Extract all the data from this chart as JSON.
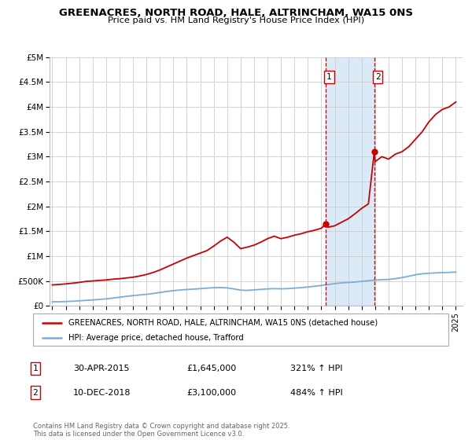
{
  "title": "GREENACRES, NORTH ROAD, HALE, ALTRINCHAM, WA15 0NS",
  "subtitle": "Price paid vs. HM Land Registry's House Price Index (HPI)",
  "background_color": "#ffffff",
  "plot_bg_color": "#ffffff",
  "grid_color": "#cccccc",
  "ylim": [
    0,
    5000000
  ],
  "xlim_start": 1994.8,
  "xlim_end": 2025.5,
  "yticks": [
    0,
    500000,
    1000000,
    1500000,
    2000000,
    2500000,
    3000000,
    3500000,
    4000000,
    4500000,
    5000000
  ],
  "ytick_labels": [
    "£0",
    "£500K",
    "£1M",
    "£1.5M",
    "£2M",
    "£2.5M",
    "£3M",
    "£3.5M",
    "£4M",
    "£4.5M",
    "£5M"
  ],
  "xticks": [
    1995,
    1996,
    1997,
    1998,
    1999,
    2000,
    2001,
    2002,
    2003,
    2004,
    2005,
    2006,
    2007,
    2008,
    2009,
    2010,
    2011,
    2012,
    2013,
    2014,
    2015,
    2016,
    2017,
    2018,
    2019,
    2020,
    2021,
    2022,
    2023,
    2024,
    2025
  ],
  "red_line_color": "#cc0000",
  "blue_line_color": "#7aaddb",
  "sale1_x": 2015.33,
  "sale1_y": 1645000,
  "sale2_x": 2018.94,
  "sale2_y": 3100000,
  "shade_color": "#daeaf7",
  "vline_color": "#cc0000",
  "legend_label_red": "GREENACRES, NORTH ROAD, HALE, ALTRINCHAM, WA15 0NS (detached house)",
  "legend_label_blue": "HPI: Average price, detached house, Trafford",
  "annotation1_date": "30-APR-2015",
  "annotation1_price": "£1,645,000",
  "annotation1_hpi": "321% ↑ HPI",
  "annotation2_date": "10-DEC-2018",
  "annotation2_price": "£3,100,000",
  "annotation2_hpi": "484% ↑ HPI",
  "footer": "Contains HM Land Registry data © Crown copyright and database right 2025.\nThis data is licensed under the Open Government Licence v3.0.",
  "red_line_data": {
    "x": [
      1995.0,
      1995.5,
      1996.0,
      1996.5,
      1997.0,
      1997.5,
      1998.0,
      1998.5,
      1999.0,
      1999.5,
      2000.0,
      2000.5,
      2001.0,
      2001.5,
      2002.0,
      2002.5,
      2003.0,
      2003.5,
      2004.0,
      2004.5,
      2005.0,
      2005.5,
      2006.0,
      2006.5,
      2007.0,
      2007.5,
      2008.0,
      2008.5,
      2009.0,
      2009.5,
      2010.0,
      2010.5,
      2011.0,
      2011.5,
      2012.0,
      2012.5,
      2013.0,
      2013.5,
      2014.0,
      2014.5,
      2015.0,
      2015.33,
      2015.5,
      2016.0,
      2016.5,
      2017.0,
      2017.5,
      2018.0,
      2018.5,
      2018.94,
      2019.0,
      2019.5,
      2020.0,
      2020.5,
      2021.0,
      2021.5,
      2022.0,
      2022.5,
      2023.0,
      2023.5,
      2024.0,
      2024.5,
      2025.0
    ],
    "y": [
      420000,
      430000,
      440000,
      455000,
      470000,
      490000,
      500000,
      510000,
      520000,
      535000,
      545000,
      560000,
      575000,
      600000,
      630000,
      670000,
      720000,
      780000,
      840000,
      900000,
      960000,
      1010000,
      1060000,
      1110000,
      1200000,
      1300000,
      1380000,
      1280000,
      1150000,
      1180000,
      1220000,
      1280000,
      1350000,
      1400000,
      1350000,
      1380000,
      1420000,
      1450000,
      1490000,
      1520000,
      1560000,
      1645000,
      1580000,
      1610000,
      1680000,
      1750000,
      1850000,
      1960000,
      2050000,
      3100000,
      2900000,
      3000000,
      2950000,
      3050000,
      3100000,
      3200000,
      3350000,
      3500000,
      3700000,
      3850000,
      3950000,
      4000000,
      4100000
    ]
  },
  "blue_line_data": {
    "x": [
      1995.0,
      1995.5,
      1996.0,
      1996.5,
      1997.0,
      1997.5,
      1998.0,
      1998.5,
      1999.0,
      1999.5,
      2000.0,
      2000.5,
      2001.0,
      2001.5,
      2002.0,
      2002.5,
      2003.0,
      2003.5,
      2004.0,
      2004.5,
      2005.0,
      2005.5,
      2006.0,
      2006.5,
      2007.0,
      2007.5,
      2008.0,
      2008.5,
      2009.0,
      2009.5,
      2010.0,
      2010.5,
      2011.0,
      2011.5,
      2012.0,
      2012.5,
      2013.0,
      2013.5,
      2014.0,
      2014.5,
      2015.0,
      2015.5,
      2016.0,
      2016.5,
      2017.0,
      2017.5,
      2018.0,
      2018.5,
      2019.0,
      2019.5,
      2020.0,
      2020.5,
      2021.0,
      2021.5,
      2022.0,
      2022.5,
      2023.0,
      2023.5,
      2024.0,
      2024.5,
      2025.0
    ],
    "y": [
      80000,
      82000,
      86000,
      92000,
      100000,
      110000,
      118000,
      128000,
      140000,
      155000,
      172000,
      190000,
      205000,
      218000,
      230000,
      248000,
      268000,
      288000,
      305000,
      318000,
      328000,
      336000,
      345000,
      355000,
      365000,
      368000,
      360000,
      340000,
      315000,
      310000,
      320000,
      330000,
      340000,
      345000,
      342000,
      345000,
      355000,
      365000,
      378000,
      393000,
      410000,
      428000,
      447000,
      460000,
      470000,
      478000,
      492000,
      505000,
      518000,
      525000,
      530000,
      545000,
      568000,
      595000,
      625000,
      645000,
      655000,
      662000,
      668000,
      672000,
      678000
    ]
  }
}
